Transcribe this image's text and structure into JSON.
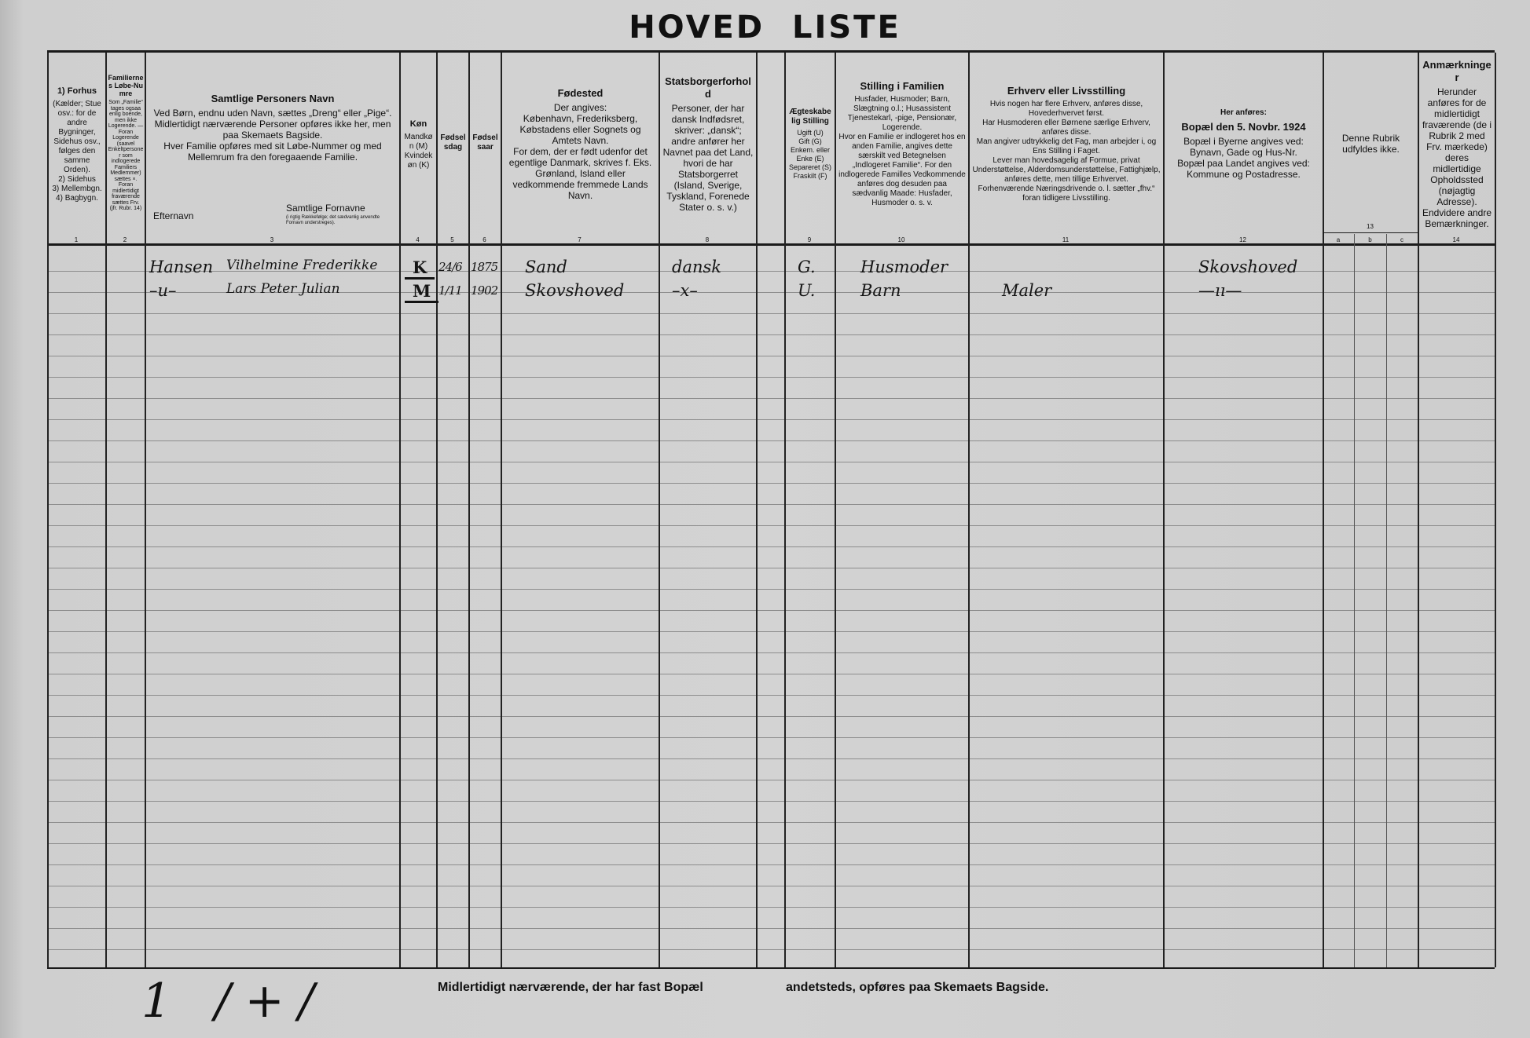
{
  "title": "HOVED LISTE",
  "headers": [
    {
      "num": "1",
      "title": "1) Forhus",
      "body": "(Kælder; Stue osv.: for de andre Bygninger, Sidehus osv., følges den samme Orden).\n2) Sidehus\n3) Mellembgn.\n4) Bagbygn."
    },
    {
      "num": "2",
      "title": "Familiernes Løbe-Numre",
      "body": "Som „Familie“ tages ogsaa enlig boende, men ikke Logerende. — Foran Logerende (saavel Enkeltpersoner som indlogerede Familiers Medlemmer) sættes ×. Foran midlertidigt fraværende sættes Frv. (jfr. Rubr. 14)"
    },
    {
      "num": "3",
      "title": "Samtlige Personers Navn",
      "body": "Ved Børn, endnu uden Navn, sættes „Dreng“ eller „Pige“.\nMidlertidigt nærværende Personer opføres ikke her, men paa Skemaets Bagside.\nHver Familie opføres med sit Løbe-Nummer og med Mellemrum fra den foregaaende Familie.",
      "sub_left": "Efternavn",
      "sub_right": "Samtlige Fornavne",
      "sub_right_note": "(i rigtig Rækkefølge; det sædvanlig anvendte Fornavn understreges)."
    },
    {
      "num": "4",
      "title": "Køn",
      "body": "Mandkøn (M)\nKvindekøn (K)"
    },
    {
      "num": "5",
      "title": "Fødselsdag",
      "body": ""
    },
    {
      "num": "6",
      "title": "Fødselsaar",
      "body": ""
    },
    {
      "num": "7",
      "title": "Fødested",
      "body": "Der angives:\nKøbenhavn, Frederiksberg, Købstadens eller Sognets og Amtets Navn.\nFor dem, der er født udenfor det egentlige Danmark, skrives f. Eks. Grønland, Island eller vedkommende fremmede Lands Navn."
    },
    {
      "num": "8",
      "title": "Statsborgerforhold",
      "body": "Personer, der har dansk Indfødsret, skriver: „dansk“; andre anfører her Navnet paa det Land, hvori de har Statsborgerret (Island, Sverige, Tyskland, Forenede Stater o. s. v.)"
    },
    {
      "num": "",
      "title": "",
      "body": ""
    },
    {
      "num": "9",
      "title": "Ægteskabelig Stilling",
      "body": "Ugift (U)\nGift (G)\nEnkem. eller Enke (E)\nSepareret (S)\nFraskilt (F)"
    },
    {
      "num": "10",
      "title": "Stilling i Familien",
      "body": "Husfader, Husmoder; Barn, Slægtning o.l.; Husassistent Tjenestekarl, -pige, Pensionær, Logerende.\nHvor en Familie er indlogeret hos en anden Familie, angives dette særskilt ved Betegnelsen „Indlogeret Familie“. For den indlogerede Familles Vedkommende anføres dog desuden paa sædvanlig Maade: Husfader, Husmoder o. s. v."
    },
    {
      "num": "11",
      "title": "Erhverv eller Livsstilling",
      "body": "Hvis nogen har flere Erhverv, anføres disse, Hovederhvervet først.\nHar Husmoderen eller Børnene særlige Erhverv, anføres disse.\nMan angiver udtrykkelig det Fag, man arbejder i, og Ens Stilling i Faget.\nLever man hovedsagelig af Formue, privat Understøttelse, Alderdomsunderstøttelse, Fattighjælp, anføres dette, men tillige Erhvervet.\nForhenværende Næringsdrivende o. l. sætter „fhv.“ foran tidligere Livsstilling."
    },
    {
      "num": "12",
      "title": "Bopæl den 5. Novbr. 1924",
      "pre": "Her anføres:",
      "body": "Bopæl i Byerne angives ved:\nBynavn, Gade og Hus-Nr.\nBopæl paa Landet angives ved:\nKommune og Postadresse."
    },
    {
      "num": "13",
      "title": "",
      "body": "Denne Rubrik udfyldes ikke.",
      "subcols": [
        "a",
        "b",
        "c"
      ]
    },
    {
      "num": "14",
      "title": "Anmærkninger",
      "body": "Herunder anføres for de midlertidigt fraværende (de i Rubrik 2 med Frv. mærkede) deres midlertidige Opholdssted (nøjagtig Adresse). Endvidere andre Bemærkninger."
    }
  ],
  "rows": [
    {
      "surname": "Hansen",
      "given": "Vilhelmine Frederikke",
      "sex": "K",
      "day": "24/6",
      "year": "1875",
      "birthplace": "Sand",
      "citizenship": "dansk",
      "marital": "G.",
      "position": "Husmoder",
      "occupation": "",
      "residence": "Skovshoved"
    },
    {
      "surname": "–u–",
      "given": "Lars Peter Julian",
      "sex": "M",
      "day": "1/11",
      "year": "1902",
      "birthplace": "Skovshoved",
      "citizenship": "–x–",
      "marital": "U.",
      "position": "Barn",
      "occupation": "Maler",
      "residence": "—ıı—"
    }
  ],
  "footer": {
    "left": "Midlertidigt nærværende, der har fast Bopæl",
    "right": "andetsteds, opføres paa Skemaets Bagside."
  },
  "margin_note": "1 /+/"
}
